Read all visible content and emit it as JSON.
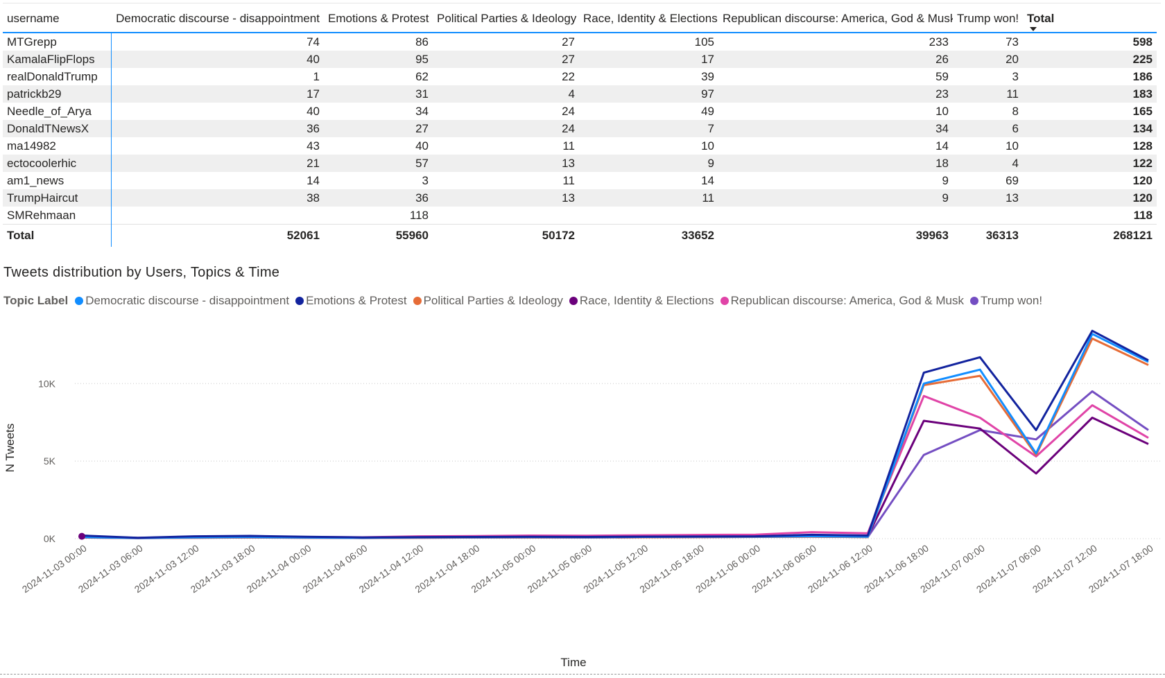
{
  "table": {
    "headers": [
      "username",
      "Democratic discourse - disappointment",
      "Emotions & Protest",
      "Political Parties & Ideology",
      "Race, Identity & Elections",
      "Republican discourse: America, God & Musk",
      "Trump won!",
      "Total"
    ],
    "rows": [
      [
        "MTGrepp",
        "74",
        "86",
        "27",
        "105",
        "233",
        "73",
        "598"
      ],
      [
        "KamalaFlipFlops",
        "40",
        "95",
        "27",
        "17",
        "26",
        "20",
        "225"
      ],
      [
        "realDonaldTrump",
        "1",
        "62",
        "22",
        "39",
        "59",
        "3",
        "186"
      ],
      [
        "patrickb29",
        "17",
        "31",
        "4",
        "97",
        "23",
        "11",
        "183"
      ],
      [
        "Needle_of_Arya",
        "40",
        "34",
        "24",
        "49",
        "10",
        "8",
        "165"
      ],
      [
        "DonaldTNewsX",
        "36",
        "27",
        "24",
        "7",
        "34",
        "6",
        "134"
      ],
      [
        "ma14982",
        "43",
        "40",
        "11",
        "10",
        "14",
        "10",
        "128"
      ],
      [
        "ectocoolerhic",
        "21",
        "57",
        "13",
        "9",
        "18",
        "4",
        "122"
      ],
      [
        "am1_news",
        "14",
        "3",
        "11",
        "14",
        "9",
        "69",
        "120"
      ],
      [
        "TrumpHaircut",
        "38",
        "36",
        "13",
        "11",
        "9",
        "13",
        "120"
      ],
      [
        "SMRehmaan",
        "",
        "118",
        "",
        "",
        "",
        "",
        "118"
      ]
    ],
    "total_row": [
      "Total",
      "52061",
      "55960",
      "50172",
      "33652",
      "39963",
      "36313",
      "268121"
    ],
    "sort_column": "Total",
    "sort_direction": "descending"
  },
  "chart_title": "Tweets distribution by Users, Topics & Time",
  "legend_title": "Topic Label",
  "chart_data": {
    "type": "line",
    "title": "Tweets distribution by Users, Topics & Time",
    "xlabel": "Time",
    "ylabel": "N Tweets",
    "x": [
      "2024-11-03 00:00",
      "2024-11-03 06:00",
      "2024-11-03 12:00",
      "2024-11-03 18:00",
      "2024-11-04 00:00",
      "2024-11-04 06:00",
      "2024-11-04 12:00",
      "2024-11-04 18:00",
      "2024-11-05 00:00",
      "2024-11-05 06:00",
      "2024-11-05 12:00",
      "2024-11-05 18:00",
      "2024-11-06 00:00",
      "2024-11-06 06:00",
      "2024-11-06 12:00",
      "2024-11-06 18:00",
      "2024-11-07 00:00",
      "2024-11-07 06:00",
      "2024-11-07 12:00",
      "2024-11-07 18:00"
    ],
    "ylim": [
      0,
      13500
    ],
    "yticks": [
      0,
      5000,
      10000
    ],
    "ytick_labels": [
      "0K",
      "5K",
      "10K"
    ],
    "grid": true,
    "legend_position": "top-left",
    "series": [
      {
        "name": "Democratic discourse - disappointment",
        "color": "#118dff",
        "values": [
          100,
          40,
          80,
          100,
          70,
          50,
          80,
          90,
          100,
          90,
          110,
          120,
          130,
          150,
          120,
          10000,
          10900,
          5500,
          13200,
          11400
        ]
      },
      {
        "name": "Emotions & Protest",
        "color": "#12239e",
        "values": [
          200,
          60,
          150,
          180,
          120,
          80,
          100,
          110,
          120,
          110,
          130,
          140,
          150,
          250,
          200,
          10700,
          11700,
          7000,
          13400,
          11500
        ]
      },
      {
        "name": "Political Parties & Ideology",
        "color": "#e66c37",
        "values": [
          80,
          30,
          60,
          80,
          60,
          40,
          60,
          70,
          80,
          70,
          90,
          100,
          110,
          120,
          100,
          9900,
          10500,
          5400,
          12900,
          11200
        ]
      },
      {
        "name": "Race, Identity & Elections",
        "color": "#6b007b",
        "values": [
          150,
          50,
          120,
          130,
          100,
          70,
          90,
          100,
          110,
          100,
          120,
          130,
          140,
          180,
          150,
          7600,
          7100,
          4200,
          7800,
          6100
        ]
      },
      {
        "name": "Republican discourse: America, God & Musk",
        "color": "#e044a7",
        "values": [
          90,
          40,
          100,
          120,
          110,
          90,
          150,
          170,
          200,
          190,
          220,
          240,
          260,
          420,
          350,
          9200,
          7800,
          5300,
          8600,
          6500
        ]
      },
      {
        "name": "Trump won!",
        "color": "#744ec2",
        "values": [
          70,
          30,
          60,
          70,
          60,
          40,
          60,
          70,
          80,
          70,
          90,
          100,
          110,
          130,
          100,
          5400,
          7000,
          6400,
          9500,
          7000
        ]
      }
    ]
  }
}
